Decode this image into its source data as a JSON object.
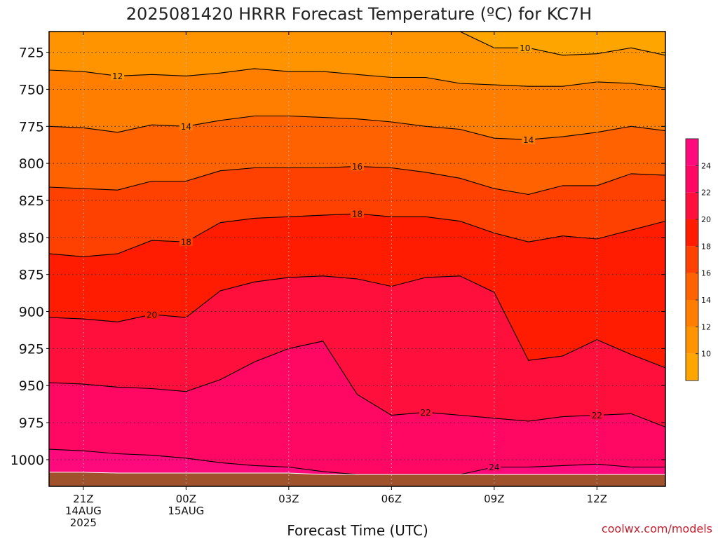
{
  "chart_data": {
    "type": "heatmap",
    "title": "2025081420 HRRR Forecast Temperature (ºC) for KC7H",
    "xlabel": "Forecast Time (UTC)",
    "ylabel": "",
    "credit": "coolwx.com/models",
    "x_hours": [
      20,
      21,
      22,
      23,
      24,
      25,
      26,
      27,
      28,
      29,
      30,
      31,
      32,
      33,
      34,
      35,
      36,
      37,
      38
    ],
    "x_ticks": [
      {
        "hour": 21,
        "lines": [
          "21Z",
          "14AUG",
          "2025"
        ]
      },
      {
        "hour": 24,
        "lines": [
          "00Z",
          "15AUG"
        ]
      },
      {
        "hour": 27,
        "lines": [
          "03Z"
        ]
      },
      {
        "hour": 30,
        "lines": [
          "06Z"
        ]
      },
      {
        "hour": 33,
        "lines": [
          "09Z"
        ]
      },
      {
        "hour": 36,
        "lines": [
          "12Z"
        ]
      }
    ],
    "y_ticks": [
      "725",
      "750",
      "775",
      "800",
      "825",
      "850",
      "875",
      "900",
      "925",
      "950",
      "975",
      "1000"
    ],
    "ylim": [
      1018,
      711
    ],
    "surface_pressure": [
      1008.5,
      1008.5,
      1009,
      1009,
      1009,
      1009,
      1009,
      1009,
      1010,
      1010,
      1010,
      1010,
      1010,
      1010,
      1010,
      1010,
      1010,
      1010,
      1010
    ],
    "isotherms": [
      {
        "temp": 10,
        "p": [
          null,
          null,
          null,
          null,
          null,
          null,
          null,
          null,
          null,
          null,
          null,
          null,
          711,
          722,
          722,
          727,
          726,
          722,
          727
        ]
      },
      {
        "temp": 12,
        "p": [
          737,
          738,
          741,
          740,
          741,
          739,
          736,
          738,
          738,
          740,
          742,
          742,
          746,
          747,
          748,
          748,
          745,
          746,
          749
        ]
      },
      {
        "temp": 14,
        "p": [
          775,
          776,
          779,
          774,
          775,
          771,
          768,
          768,
          769,
          770,
          772,
          775,
          777,
          783,
          784,
          782,
          779,
          775,
          778
        ]
      },
      {
        "temp": 16,
        "p": [
          816,
          817,
          818,
          812,
          812,
          805,
          803,
          803,
          803,
          802,
          803,
          806,
          810,
          817,
          821,
          815,
          815,
          807,
          808
        ]
      },
      {
        "temp": 18,
        "p": [
          861,
          863,
          861,
          852,
          853,
          840,
          837,
          836,
          835,
          834,
          836,
          836,
          839,
          847,
          853,
          849,
          851,
          845,
          839
        ]
      },
      {
        "temp": 20,
        "p": [
          904,
          905,
          907,
          902,
          904,
          886,
          880,
          877,
          876,
          878,
          883,
          877,
          876,
          887,
          933,
          930,
          919,
          929,
          938
        ]
      },
      {
        "temp": 22,
        "p": [
          948,
          949,
          951,
          952,
          954,
          946,
          934,
          925,
          920,
          956,
          970,
          968,
          970,
          972,
          974,
          971,
          970,
          969,
          978
        ]
      },
      {
        "temp": 24,
        "p": [
          993,
          994,
          996,
          997,
          999,
          1002,
          1004,
          1005,
          1008,
          1010,
          1010,
          1010,
          1010,
          1005,
          1005,
          1004,
          1003,
          1005,
          1005
        ]
      }
    ],
    "contour_labels": [
      {
        "temp": 10,
        "hour": 33.9
      },
      {
        "temp": 12,
        "hour": 22.0
      },
      {
        "temp": 14,
        "hour": 24.0
      },
      {
        "temp": 14,
        "hour": 34.0
      },
      {
        "temp": 16,
        "hour": 29.0
      },
      {
        "temp": 18,
        "hour": 29.0
      },
      {
        "temp": 18,
        "hour": 24.0
      },
      {
        "temp": 20,
        "hour": 23.0
      },
      {
        "temp": 22,
        "hour": 31.0
      },
      {
        "temp": 22,
        "hour": 36.0
      },
      {
        "temp": 24,
        "hour": 33.0
      }
    ],
    "colorbar": {
      "labels": [
        "10",
        "12",
        "14",
        "16",
        "18",
        "20",
        "22",
        "24"
      ],
      "bands": [
        {
          "min": 8,
          "max": 10,
          "color": "#ffa500"
        },
        {
          "min": 10,
          "max": 12,
          "color": "#ff9400"
        },
        {
          "min": 12,
          "max": 14,
          "color": "#ff7e00"
        },
        {
          "min": 14,
          "max": 16,
          "color": "#ff6200"
        },
        {
          "min": 16,
          "max": 18,
          "color": "#ff4100"
        },
        {
          "min": 18,
          "max": 20,
          "color": "#ff1c00"
        },
        {
          "min": 20,
          "max": 22,
          "color": "#ff0f3c"
        },
        {
          "min": 22,
          "max": 24,
          "color": "#ff0863"
        },
        {
          "min": 24,
          "max": 26,
          "color": "#ff0a7d"
        }
      ]
    },
    "ground_color": "#a0522d",
    "grid": true
  }
}
